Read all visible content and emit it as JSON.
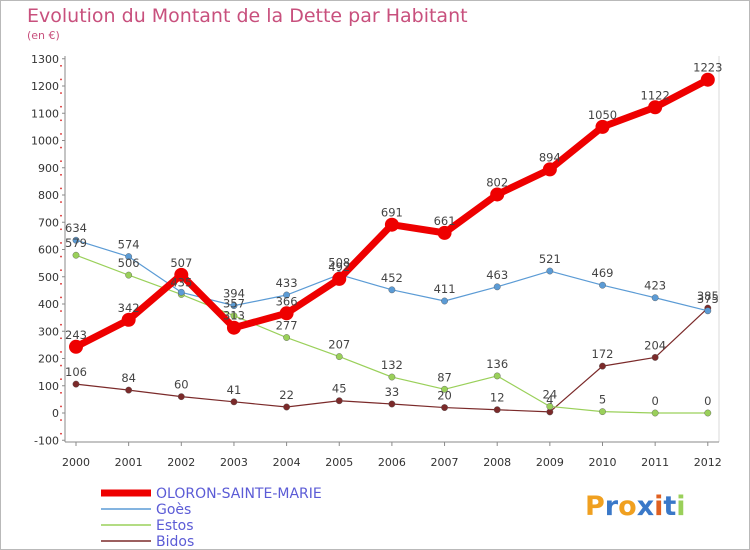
{
  "title": "Evolution du Montant de la Dette par Habitant",
  "subtitle": "(en €)",
  "logo": "Proxiti",
  "chart_data": {
    "type": "line",
    "x": [
      "2000",
      "2001",
      "2002",
      "2003",
      "2004",
      "2005",
      "2006",
      "2007",
      "2008",
      "2009",
      "2010",
      "2011",
      "2012"
    ],
    "ylim": [
      -100,
      1300
    ],
    "yticks": [
      -100,
      0,
      100,
      200,
      300,
      400,
      500,
      600,
      700,
      800,
      900,
      1000,
      1100,
      1200,
      1300
    ],
    "grid": false,
    "legend": "bottom-left",
    "series": [
      {
        "name": "OLORON-SAINTE-MARIE",
        "color": "#ee0000",
        "values": [
          243,
          342,
          507,
          313,
          366,
          492,
          691,
          661,
          802,
          894,
          1050,
          1122,
          1223
        ]
      },
      {
        "name": "Goès",
        "color": "#5b9bd5",
        "values": [
          634,
          574,
          443,
          394,
          433,
          508,
          452,
          411,
          463,
          521,
          469,
          423,
          375
        ]
      },
      {
        "name": "Estos",
        "color": "#9ad05a",
        "values": [
          579,
          506,
          435,
          357,
          277,
          207,
          132,
          87,
          136,
          24,
          5,
          0,
          0
        ]
      },
      {
        "name": "Bidos",
        "color": "#7b2a2a",
        "values": [
          106,
          84,
          60,
          41,
          22,
          45,
          33,
          20,
          12,
          4,
          172,
          204,
          385
        ]
      }
    ],
    "data_labels": [
      [
        "243",
        "342",
        "507",
        "313",
        "366",
        "492",
        "691",
        "661",
        "802",
        "894",
        "1050",
        "1122",
        "1223"
      ],
      [
        "634",
        "574",
        "",
        "394",
        "433",
        "508",
        "452",
        "411",
        "463",
        "521",
        "469",
        "423",
        "375"
      ],
      [
        "579",
        "506",
        "435",
        "357",
        "277",
        "207",
        "132",
        "87",
        "136",
        "24",
        "5",
        "0",
        "0"
      ],
      [
        "106",
        "84",
        "60",
        "41",
        "22",
        "45",
        "33",
        "20",
        "12",
        "4",
        "172",
        "204",
        "385"
      ]
    ]
  }
}
